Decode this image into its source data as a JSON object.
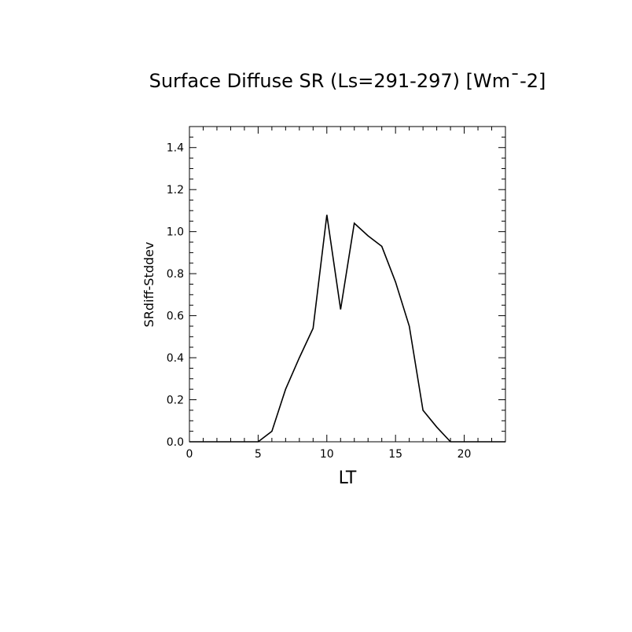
{
  "chart_data": {
    "type": "line",
    "title": "Surface Diffuse SR (Ls=291-297) [Wm¯-2]",
    "xlabel": "LT",
    "ylabel": "SRdiff-Stddev",
    "xlim": [
      0,
      23
    ],
    "ylim": [
      0,
      1.5
    ],
    "x_ticks": [
      0,
      5,
      10,
      15,
      20
    ],
    "y_ticks": [
      0.0,
      0.2,
      0.4,
      0.6,
      0.8,
      1.0,
      1.2,
      1.4
    ],
    "x_tick_labels": [
      "0",
      "5",
      "10",
      "15",
      "20"
    ],
    "y_tick_labels": [
      "0.0",
      "0.2",
      "0.4",
      "0.6",
      "0.8",
      "1.0",
      "1.2",
      "1.4"
    ],
    "grid": false,
    "series": [
      {
        "x": [
          0,
          1,
          2,
          3,
          4,
          5,
          6,
          7,
          8,
          9,
          10,
          11,
          12,
          13,
          14,
          15,
          16,
          17,
          18,
          19,
          20,
          21,
          22,
          23
        ],
        "y": [
          0,
          0,
          0,
          0,
          0,
          0,
          0.05,
          0.25,
          0.4,
          0.54,
          1.08,
          0.63,
          1.04,
          0.98,
          0.93,
          0.76,
          0.55,
          0.15,
          0.07,
          0,
          0,
          0,
          0,
          0
        ]
      }
    ],
    "colors": {
      "line": "#000000",
      "axes": "#000000"
    }
  }
}
